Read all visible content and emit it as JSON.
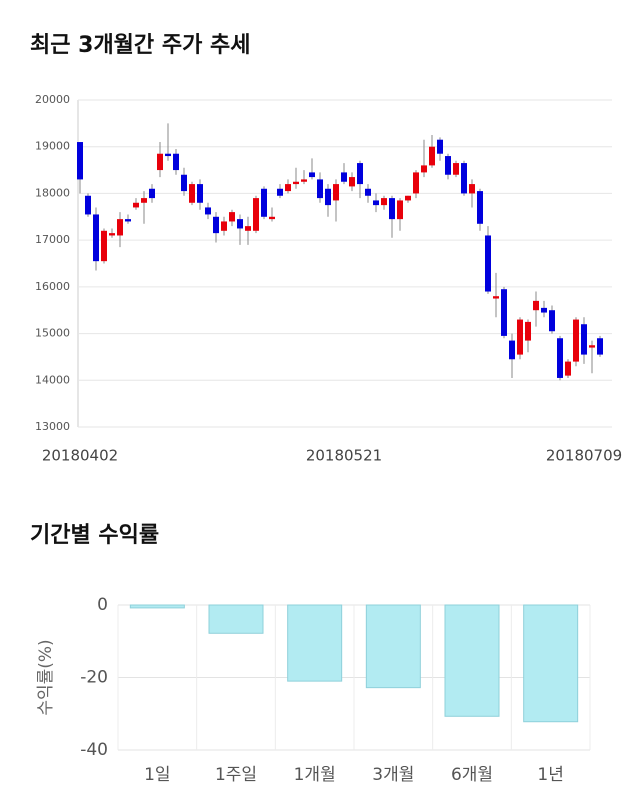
{
  "chart_data": [
    {
      "type": "candlestick",
      "title": "최근 3개월간 주가 추세",
      "categories": [
        "20180402",
        null,
        null,
        null,
        null,
        null,
        null,
        null,
        null,
        null,
        null,
        null,
        null,
        null,
        null,
        null,
        null,
        null,
        null,
        null,
        null,
        null,
        null,
        null,
        null,
        null,
        null,
        null,
        null,
        null,
        null,
        null,
        null,
        "20180521",
        null,
        null,
        null,
        null,
        null,
        null,
        null,
        null,
        null,
        null,
        null,
        null,
        null,
        null,
        null,
        null,
        null,
        null,
        null,
        null,
        null,
        null,
        null,
        null,
        null,
        null,
        null,
        null,
        null,
        "20180709",
        null,
        null
      ],
      "open": [
        19100,
        17950,
        17550,
        16550,
        17100,
        17100,
        17450,
        17700,
        17800,
        18100,
        18500,
        18850,
        18850,
        18400,
        17800,
        18200,
        17700,
        17500,
        17200,
        17400,
        17450,
        17200,
        17200,
        18100,
        17450,
        18100,
        18050,
        18200,
        18250,
        18450,
        18300,
        18100,
        17850,
        18450,
        18150,
        18650,
        18100,
        17850,
        17750,
        17900,
        17450,
        17850,
        18000,
        18450,
        18600,
        19150,
        18800,
        18400,
        18650,
        18000,
        18050,
        17100,
        15750,
        15950,
        14850,
        14550,
        14850,
        15500,
        15550,
        15500,
        14900,
        14100,
        14400,
        15200,
        14700,
        14900
      ],
      "high": [
        19100,
        18000,
        17700,
        17250,
        17250,
        17600,
        17550,
        17900,
        18050,
        18200,
        19100,
        19500,
        18950,
        18550,
        18250,
        18300,
        17800,
        17600,
        17500,
        17650,
        17550,
        17500,
        17950,
        18150,
        17700,
        18200,
        18300,
        18550,
        18500,
        18750,
        18450,
        18200,
        18300,
        18650,
        18450,
        18700,
        18200,
        18000,
        17950,
        17950,
        17900,
        17950,
        18500,
        19150,
        19250,
        19200,
        18850,
        18700,
        18700,
        18300,
        18100,
        17300,
        16300,
        16000,
        15000,
        15350,
        15300,
        15900,
        15700,
        15600,
        14950,
        14450,
        15350,
        15350,
        14850,
        14950
      ],
      "low": [
        18000,
        17500,
        16350,
        16500,
        17050,
        16850,
        17350,
        17650,
        17350,
        17800,
        18350,
        18700,
        18400,
        17950,
        17750,
        17650,
        17450,
        16950,
        17100,
        17300,
        16900,
        16900,
        17150,
        17450,
        17400,
        17900,
        18000,
        18100,
        18200,
        18300,
        17800,
        17500,
        17400,
        18200,
        18050,
        17900,
        17800,
        17600,
        17650,
        17050,
        17200,
        17800,
        17900,
        18350,
        18550,
        18700,
        18300,
        18350,
        17950,
        17700,
        17200,
        15850,
        15350,
        14900,
        14050,
        14450,
        14600,
        15150,
        15350,
        15000,
        14000,
        14050,
        14300,
        14350,
        14150,
        14500
      ],
      "close": [
        18300,
        17550,
        16550,
        17200,
        17150,
        17450,
        17400,
        17800,
        17900,
        17900,
        18850,
        18800,
        18500,
        18050,
        18200,
        17800,
        17550,
        17150,
        17400,
        17600,
        17250,
        17300,
        17900,
        17500,
        17500,
        17950,
        18200,
        18250,
        18300,
        18350,
        17900,
        17750,
        18200,
        18250,
        18350,
        18200,
        17950,
        17750,
        17900,
        17450,
        17850,
        17950,
        18450,
        18600,
        19000,
        18850,
        18400,
        18650,
        18000,
        18200,
        17350,
        15900,
        15800,
        14950,
        14450,
        15300,
        15250,
        15700,
        15450,
        15050,
        14050,
        14400,
        15300,
        14550,
        14750,
        14550
      ],
      "up_color": "#e8000b",
      "down_color": "#0000dd",
      "ylim": [
        13000,
        20000
      ],
      "yticks": [
        13000,
        14000,
        15000,
        16000,
        17000,
        18000,
        19000,
        20000
      ],
      "grid": true
    },
    {
      "type": "bar",
      "title": "기간별 수익률",
      "ylabel": "수익률(%)",
      "categories": [
        "1일",
        "1주일",
        "1개월",
        "3개월",
        "6개월",
        "1년"
      ],
      "values": [
        -0.8,
        -7.8,
        -21,
        -22.8,
        -30.7,
        -32.2
      ],
      "color": "#b2ebf2",
      "edge_color": "#8fd0da",
      "ylim": [
        -40,
        0
      ],
      "yticks": [
        0,
        -20,
        -40
      ],
      "grid": true
    }
  ]
}
